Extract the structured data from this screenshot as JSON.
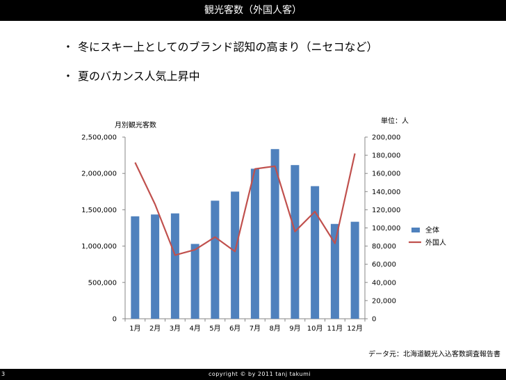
{
  "header": {
    "title": "観光客数（外国人客）"
  },
  "bullets": [
    {
      "marker": "・",
      "text": "冬にスキー上としてのブランド認知の高まり（ニセコなど）"
    },
    {
      "marker": "・",
      "text": "夏のバカンス人気上昇中"
    }
  ],
  "unit_label": "単位：人",
  "source_label": "データ元：北海道観光入込客数調査報告書",
  "footer": {
    "page_number": "3",
    "copyright": "copyright © by 2011 tanj takumi"
  },
  "colors": {
    "bar": "#4f81bd",
    "line": "#c0504d",
    "axis": "#868686",
    "title_bar": "#000000"
  },
  "chart_data": {
    "type": "bar",
    "title": "月別観光客数",
    "categories": [
      "1月",
      "2月",
      "3月",
      "4月",
      "5月",
      "6月",
      "7月",
      "8月",
      "9月",
      "10月",
      "11月",
      "12月"
    ],
    "series": [
      {
        "name": "全体",
        "type": "bar",
        "axis": "left",
        "values": [
          1410000,
          1435000,
          1450000,
          1030000,
          1625000,
          1750000,
          2065000,
          2335000,
          2115000,
          1825000,
          1305000,
          1335000
        ]
      },
      {
        "name": "外国人",
        "type": "line",
        "axis": "right",
        "values": [
          172000,
          126000,
          70000,
          76000,
          90000,
          74000,
          165000,
          168000,
          96000,
          118000,
          83000,
          182000
        ]
      }
    ],
    "y_left": {
      "min": 0,
      "max": 2500000,
      "step": 500000,
      "tick_labels": [
        "0",
        "500,000",
        "1,000,000",
        "1,500,000",
        "2,000,000",
        "2,500,000"
      ]
    },
    "y_right": {
      "min": 0,
      "max": 200000,
      "step": 20000,
      "tick_labels": [
        "0",
        "20,000",
        "40,000",
        "60,000",
        "80,000",
        "100,000",
        "120,000",
        "140,000",
        "160,000",
        "180,000",
        "200,000"
      ]
    },
    "grid": false,
    "legend_position": "right"
  }
}
